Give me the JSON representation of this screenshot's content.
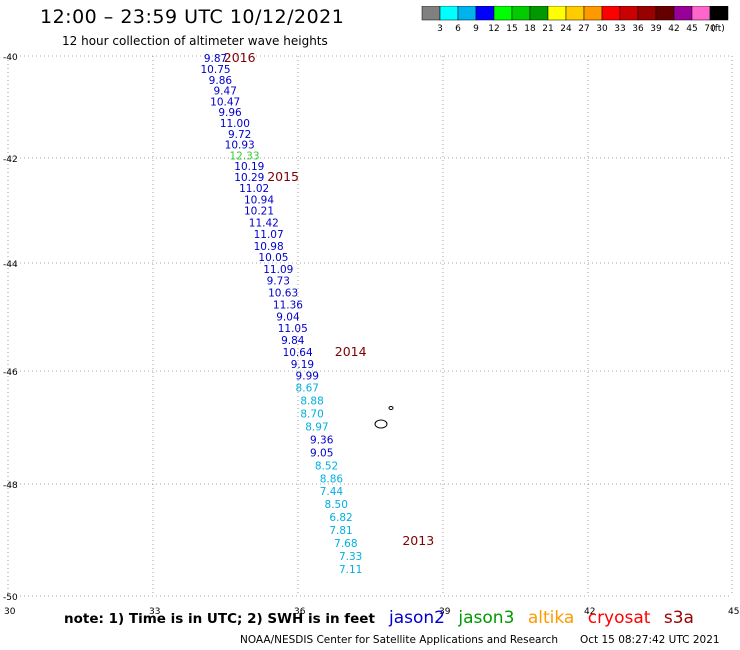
{
  "header": {
    "title": "12:00 – 23:59 UTC 10/12/2021",
    "subtitle": "12 hour collection of altimeter wave heights"
  },
  "colorbar": {
    "unit": "(ft)",
    "bins": [
      {
        "label": "",
        "color": "#808080"
      },
      {
        "label": "3",
        "color": "#00ffff"
      },
      {
        "label": "6",
        "color": "#00b2ee"
      },
      {
        "label": "9",
        "color": "#0000ff"
      },
      {
        "label": "12",
        "color": "#00ff00"
      },
      {
        "label": "15",
        "color": "#00cc00"
      },
      {
        "label": "18",
        "color": "#009900"
      },
      {
        "label": "21",
        "color": "#ffff00"
      },
      {
        "label": "24",
        "color": "#ffcc00"
      },
      {
        "label": "27",
        "color": "#ff9900"
      },
      {
        "label": "30",
        "color": "#ff0000"
      },
      {
        "label": "33",
        "color": "#cc0000"
      },
      {
        "label": "36",
        "color": "#990000"
      },
      {
        "label": "39",
        "color": "#660000"
      },
      {
        "label": "42",
        "color": "#990099"
      },
      {
        "label": "45",
        "color": "#ff66cc"
      },
      {
        "label": "70",
        "color": "#000000"
      }
    ]
  },
  "chart_data": {
    "type": "scatter",
    "xlim": [
      30,
      45
    ],
    "ylim": [
      -50,
      -40
    ],
    "x_ticks": [
      "30",
      "33",
      "36",
      "39",
      "42",
      "45"
    ],
    "y_ticks": [
      "-40",
      "-42",
      "-44",
      "-46",
      "-48",
      "-50"
    ],
    "grid": true,
    "colors": {
      "jason2": "#0000cc",
      "jason3": "#009900",
      "altika": "#ff9900",
      "cryosat": "#ff0000",
      "s3a": "#990000",
      "light": "#00b0e0",
      "green": "#33cc33",
      "time": "#800000",
      "grid": "#888888"
    },
    "points": [
      {
        "x": 34.3,
        "y": -40.04,
        "v": "9.87",
        "c": "jason2"
      },
      {
        "x": 34.3,
        "y": -40.24,
        "v": "10.75",
        "c": "jason2"
      },
      {
        "x": 34.4,
        "y": -40.44,
        "v": "9.86",
        "c": "jason2"
      },
      {
        "x": 34.5,
        "y": -40.64,
        "v": "9.47",
        "c": "jason2"
      },
      {
        "x": 34.5,
        "y": -40.84,
        "v": "10.47",
        "c": "jason2"
      },
      {
        "x": 34.6,
        "y": -41.04,
        "v": "9.96",
        "c": "jason2"
      },
      {
        "x": 34.7,
        "y": -41.24,
        "v": "11.00",
        "c": "jason2"
      },
      {
        "x": 34.8,
        "y": -41.44,
        "v": "9.72",
        "c": "jason2"
      },
      {
        "x": 34.8,
        "y": -41.64,
        "v": "10.93",
        "c": "jason2"
      },
      {
        "x": 34.9,
        "y": -41.84,
        "v": "12.33",
        "c": "green"
      },
      {
        "x": 35.0,
        "y": -42.04,
        "v": "10.19",
        "c": "jason2"
      },
      {
        "x": 35.0,
        "y": -42.24,
        "v": "10.29",
        "c": "jason2"
      },
      {
        "x": 35.1,
        "y": -42.44,
        "v": "11.02",
        "c": "jason2"
      },
      {
        "x": 35.2,
        "y": -42.66,
        "v": "10.94",
        "c": "jason2"
      },
      {
        "x": 35.2,
        "y": -42.86,
        "v": "10.21",
        "c": "jason2"
      },
      {
        "x": 35.3,
        "y": -43.08,
        "v": "11.42",
        "c": "jason2"
      },
      {
        "x": 35.4,
        "y": -43.3,
        "v": "11.07",
        "c": "jason2"
      },
      {
        "x": 35.4,
        "y": -43.52,
        "v": "10.98",
        "c": "jason2"
      },
      {
        "x": 35.5,
        "y": -43.72,
        "v": "10.05",
        "c": "jason2"
      },
      {
        "x": 35.6,
        "y": -43.94,
        "v": "11.09",
        "c": "jason2"
      },
      {
        "x": 35.6,
        "y": -44.16,
        "v": "9.73",
        "c": "jason2"
      },
      {
        "x": 35.7,
        "y": -44.38,
        "v": "10.63",
        "c": "jason2"
      },
      {
        "x": 35.8,
        "y": -44.6,
        "v": "11.36",
        "c": "jason2"
      },
      {
        "x": 35.8,
        "y": -44.82,
        "v": "9.04",
        "c": "jason2"
      },
      {
        "x": 35.9,
        "y": -45.04,
        "v": "11.05",
        "c": "jason2"
      },
      {
        "x": 35.9,
        "y": -45.26,
        "v": "9.84",
        "c": "jason2"
      },
      {
        "x": 36.0,
        "y": -45.48,
        "v": "10.64",
        "c": "jason2"
      },
      {
        "x": 36.1,
        "y": -45.7,
        "v": "9.19",
        "c": "jason2"
      },
      {
        "x": 36.2,
        "y": -45.92,
        "v": "9.99",
        "c": "jason2"
      },
      {
        "x": 36.2,
        "y": -46.14,
        "v": "8.67",
        "c": "light"
      },
      {
        "x": 36.3,
        "y": -46.38,
        "v": "8.88",
        "c": "light"
      },
      {
        "x": 36.3,
        "y": -46.62,
        "v": "8.70",
        "c": "light"
      },
      {
        "x": 36.4,
        "y": -46.86,
        "v": "8.97",
        "c": "light"
      },
      {
        "x": 36.5,
        "y": -47.1,
        "v": "9.36",
        "c": "jason2"
      },
      {
        "x": 36.5,
        "y": -47.34,
        "v": "9.05",
        "c": "jason2"
      },
      {
        "x": 36.6,
        "y": -47.58,
        "v": "8.52",
        "c": "light"
      },
      {
        "x": 36.7,
        "y": -47.82,
        "v": "8.86",
        "c": "light"
      },
      {
        "x": 36.7,
        "y": -48.06,
        "v": "7.44",
        "c": "light"
      },
      {
        "x": 36.8,
        "y": -48.3,
        "v": "8.50",
        "c": "light"
      },
      {
        "x": 36.9,
        "y": -48.54,
        "v": "6.82",
        "c": "light"
      },
      {
        "x": 36.9,
        "y": -48.78,
        "v": "7.81",
        "c": "light"
      },
      {
        "x": 37.0,
        "y": -49.02,
        "v": "7.68",
        "c": "light"
      },
      {
        "x": 37.1,
        "y": -49.26,
        "v": "7.33",
        "c": "light"
      },
      {
        "x": 37.1,
        "y": -49.5,
        "v": "7.11",
        "c": "light"
      }
    ],
    "time_labels": [
      {
        "x": 34.8,
        "y": -40.04,
        "v": "2016"
      },
      {
        "x": 35.7,
        "y": -42.24,
        "v": "2015"
      },
      {
        "x": 37.1,
        "y": -45.48,
        "v": "2014"
      },
      {
        "x": 38.5,
        "y": -48.98,
        "v": "2013"
      }
    ]
  },
  "footer": {
    "note": "note: 1) Time is in UTC; 2) SWH is in feet",
    "satellites": [
      "jason2",
      "jason3",
      "altika",
      "cryosat",
      "s3a"
    ],
    "credit": "NOAA/NESDIS Center for Satellite Applications and Research",
    "timestamp": "Oct 15 08:27:42 UTC 2021"
  }
}
